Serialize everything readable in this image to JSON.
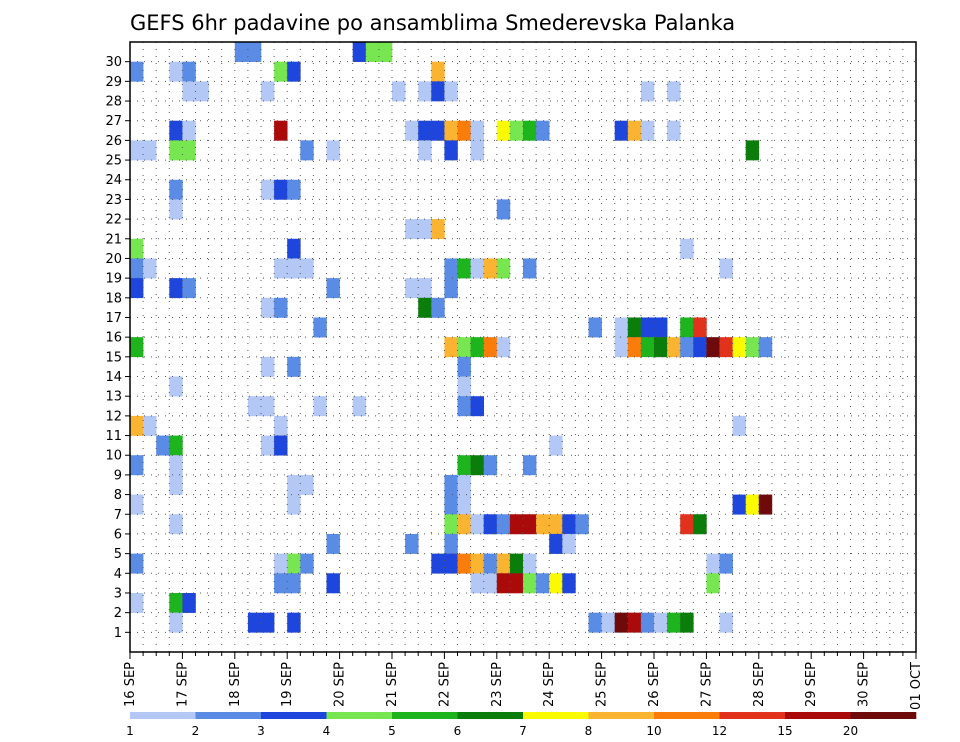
{
  "chart_data": {
    "type": "heatmap",
    "title": "GEFS 6hr padavine po ansamblima Smederevska Palanka",
    "xlabel": "",
    "ylabel": "",
    "y_ticks": [
      "1",
      "2",
      "3",
      "4",
      "5",
      "6",
      "7",
      "8",
      "9",
      "10",
      "11",
      "12",
      "13",
      "14",
      "15",
      "16",
      "17",
      "18",
      "19",
      "20",
      "21",
      "22",
      "23",
      "24",
      "25",
      "26",
      "27",
      "28",
      "29",
      "30"
    ],
    "x_ticks": [
      "16 SEP",
      "17 SEP",
      "18 SEP",
      "19 SEP",
      "20 SEP",
      "21 SEP",
      "22 SEP",
      "23 SEP",
      "24 SEP",
      "25 SEP",
      "26 SEP",
      "27 SEP",
      "28 SEP",
      "29 SEP",
      "30 SEP",
      "01 OCT"
    ],
    "x_step": "6hr",
    "grid": true,
    "colorbar": {
      "labels": [
        "1",
        "2",
        "3",
        "4",
        "5",
        "6",
        "7",
        "8",
        "10",
        "12",
        "15",
        "20"
      ],
      "colors": [
        "#b4c8f5",
        "#5a8ce6",
        "#1e46dc",
        "#78e650",
        "#1eb41e",
        "#0a7d0a",
        "#fafa00",
        "#fab432",
        "#fa7d0a",
        "#e1321e",
        "#aa0a0a",
        "#6e0a0a"
      ]
    },
    "cells": [
      {
        "m": 30,
        "t": [
          [
            8,
            1
          ],
          [
            9,
            1
          ],
          [
            17,
            2
          ],
          [
            18,
            3
          ],
          [
            19,
            3
          ]
        ]
      },
      {
        "m": 29,
        "t": [
          [
            0,
            1
          ],
          [
            3,
            0
          ],
          [
            4,
            1
          ],
          [
            11,
            3
          ],
          [
            12,
            2
          ],
          [
            23,
            7
          ]
        ]
      },
      {
        "m": 28,
        "t": [
          [
            4,
            0
          ],
          [
            5,
            0
          ],
          [
            10,
            0
          ],
          [
            20,
            0
          ],
          [
            22,
            0
          ],
          [
            23,
            2
          ],
          [
            24,
            0
          ],
          [
            39,
            0
          ],
          [
            41,
            0
          ]
        ]
      },
      {
        "m": 26,
        "t": [
          [
            3,
            2
          ],
          [
            4,
            0
          ],
          [
            11,
            10
          ],
          [
            21,
            0
          ],
          [
            22,
            2
          ],
          [
            23,
            2
          ],
          [
            24,
            7
          ],
          [
            25,
            8
          ],
          [
            26,
            0
          ],
          [
            28,
            6
          ],
          [
            29,
            3
          ],
          [
            30,
            4
          ],
          [
            31,
            1
          ],
          [
            37,
            2
          ],
          [
            38,
            7
          ],
          [
            39,
            0
          ],
          [
            41,
            0
          ]
        ]
      },
      {
        "m": 25,
        "t": [
          [
            0,
            0
          ],
          [
            1,
            0
          ],
          [
            3,
            3
          ],
          [
            4,
            3
          ],
          [
            13,
            1
          ],
          [
            15,
            0
          ],
          [
            22,
            0
          ],
          [
            24,
            2
          ],
          [
            26,
            0
          ],
          [
            47,
            5
          ]
        ]
      },
      {
        "m": 23,
        "t": [
          [
            3,
            1
          ],
          [
            10,
            0
          ],
          [
            11,
            2
          ],
          [
            12,
            1
          ]
        ]
      },
      {
        "m": 22,
        "t": [
          [
            3,
            0
          ],
          [
            28,
            1
          ]
        ]
      },
      {
        "m": 21,
        "t": [
          [
            21,
            0
          ],
          [
            22,
            0
          ],
          [
            23,
            7
          ]
        ]
      },
      {
        "m": 20,
        "t": [
          [
            0,
            3
          ],
          [
            12,
            2
          ],
          [
            42,
            0
          ]
        ]
      },
      {
        "m": 19,
        "t": [
          [
            0,
            1
          ],
          [
            1,
            0
          ],
          [
            11,
            0
          ],
          [
            12,
            0
          ],
          [
            13,
            0
          ],
          [
            24,
            1
          ],
          [
            25,
            4
          ],
          [
            26,
            0
          ],
          [
            27,
            7
          ],
          [
            28,
            3
          ],
          [
            30,
            1
          ],
          [
            45,
            0
          ]
        ]
      },
      {
        "m": 18,
        "t": [
          [
            0,
            2
          ],
          [
            3,
            2
          ],
          [
            4,
            1
          ],
          [
            15,
            1
          ],
          [
            21,
            0
          ],
          [
            22,
            0
          ],
          [
            24,
            1
          ]
        ]
      },
      {
        "m": 17,
        "t": [
          [
            10,
            0
          ],
          [
            11,
            1
          ],
          [
            22,
            5
          ],
          [
            23,
            1
          ]
        ]
      },
      {
        "m": 16,
        "t": [
          [
            14,
            1
          ],
          [
            35,
            1
          ],
          [
            37,
            0
          ],
          [
            38,
            5
          ],
          [
            39,
            2
          ],
          [
            40,
            2
          ],
          [
            42,
            4
          ],
          [
            43,
            9
          ]
        ]
      },
      {
        "m": 15,
        "t": [
          [
            0,
            4
          ],
          [
            24,
            7
          ],
          [
            25,
            3
          ],
          [
            26,
            4
          ],
          [
            27,
            8
          ],
          [
            28,
            0
          ],
          [
            37,
            0
          ],
          [
            38,
            8
          ],
          [
            39,
            4
          ],
          [
            40,
            5
          ],
          [
            41,
            7
          ],
          [
            42,
            1
          ],
          [
            43,
            2
          ],
          [
            44,
            11
          ],
          [
            45,
            9
          ],
          [
            46,
            6
          ],
          [
            47,
            3
          ],
          [
            48,
            1
          ]
        ]
      },
      {
        "m": 14,
        "t": [
          [
            10,
            0
          ],
          [
            12,
            1
          ],
          [
            25,
            1
          ]
        ]
      },
      {
        "m": 13,
        "t": [
          [
            3,
            0
          ],
          [
            25,
            0
          ]
        ]
      },
      {
        "m": 12,
        "t": [
          [
            9,
            0
          ],
          [
            10,
            0
          ],
          [
            14,
            0
          ],
          [
            17,
            0
          ],
          [
            25,
            1
          ],
          [
            26,
            2
          ]
        ]
      },
      {
        "m": 11,
        "t": [
          [
            0,
            7
          ],
          [
            1,
            0
          ],
          [
            11,
            0
          ],
          [
            46,
            0
          ]
        ]
      },
      {
        "m": 10,
        "t": [
          [
            2,
            1
          ],
          [
            3,
            4
          ],
          [
            10,
            0
          ],
          [
            11,
            2
          ],
          [
            32,
            0
          ]
        ]
      },
      {
        "m": 9,
        "t": [
          [
            0,
            1
          ],
          [
            3,
            0
          ],
          [
            25,
            4
          ],
          [
            26,
            5
          ],
          [
            27,
            1
          ],
          [
            30,
            1
          ]
        ]
      },
      {
        "m": 8,
        "t": [
          [
            3,
            0
          ],
          [
            12,
            0
          ],
          [
            13,
            0
          ],
          [
            24,
            1
          ],
          [
            25,
            0
          ]
        ]
      },
      {
        "m": 7,
        "t": [
          [
            0,
            0
          ],
          [
            12,
            0
          ],
          [
            24,
            1
          ],
          [
            25,
            0
          ],
          [
            46,
            2
          ],
          [
            47,
            6
          ],
          [
            48,
            11
          ]
        ]
      },
      {
        "m": 6,
        "t": [
          [
            3,
            0
          ],
          [
            24,
            3
          ],
          [
            25,
            7
          ],
          [
            26,
            0
          ],
          [
            27,
            2
          ],
          [
            28,
            1
          ],
          [
            29,
            10
          ],
          [
            30,
            10
          ],
          [
            31,
            7
          ],
          [
            32,
            7
          ],
          [
            33,
            2
          ],
          [
            34,
            1
          ],
          [
            42,
            9
          ],
          [
            43,
            5
          ]
        ]
      },
      {
        "m": 5,
        "t": [
          [
            15,
            1
          ],
          [
            21,
            1
          ],
          [
            24,
            1
          ],
          [
            32,
            2
          ],
          [
            33,
            0
          ]
        ]
      },
      {
        "m": 4,
        "t": [
          [
            0,
            1
          ],
          [
            11,
            0
          ],
          [
            12,
            3
          ],
          [
            13,
            1
          ],
          [
            23,
            2
          ],
          [
            24,
            2
          ],
          [
            25,
            8
          ],
          [
            26,
            7
          ],
          [
            27,
            1
          ],
          [
            28,
            7
          ],
          [
            29,
            5
          ],
          [
            30,
            0
          ],
          [
            44,
            0
          ],
          [
            45,
            1
          ]
        ]
      },
      {
        "m": 3,
        "t": [
          [
            11,
            1
          ],
          [
            12,
            1
          ],
          [
            15,
            2
          ],
          [
            26,
            0
          ],
          [
            27,
            0
          ],
          [
            28,
            10
          ],
          [
            29,
            10
          ],
          [
            30,
            3
          ],
          [
            31,
            1
          ],
          [
            32,
            6
          ],
          [
            33,
            2
          ],
          [
            44,
            3
          ]
        ]
      },
      {
        "m": 2,
        "t": [
          [
            0,
            0
          ],
          [
            3,
            4
          ],
          [
            4,
            2
          ]
        ]
      },
      {
        "m": 1,
        "t": [
          [
            3,
            0
          ],
          [
            9,
            2
          ],
          [
            10,
            2
          ],
          [
            12,
            2
          ],
          [
            35,
            1
          ],
          [
            36,
            0
          ],
          [
            37,
            11
          ],
          [
            38,
            10
          ],
          [
            39,
            1
          ],
          [
            40,
            0
          ],
          [
            41,
            4
          ],
          [
            42,
            5
          ],
          [
            45,
            0
          ]
        ]
      }
    ]
  }
}
